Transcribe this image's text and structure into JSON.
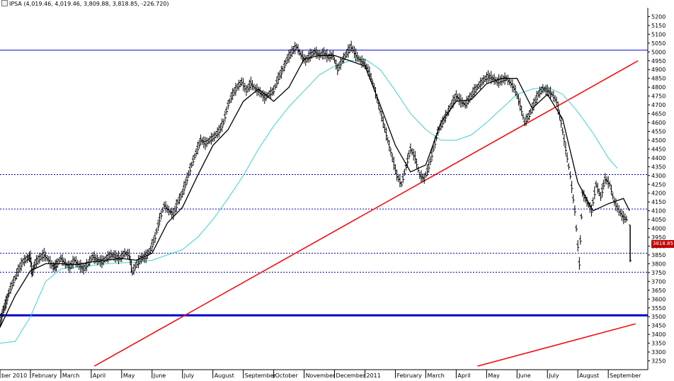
{
  "header": {
    "symbol": "IPSA",
    "ohlc_text": "(4,019.46, 4,019.46, 3,809.88, 3,818.85, -226.720)"
  },
  "last_price_label": "3818.85",
  "colors": {
    "background": "#ffffff",
    "price_bars": "#000000",
    "fast_ma": "#000000",
    "slow_ma": "#40d0d0",
    "trendline": "#ff0000",
    "horizontal_levels": "#0000cc",
    "last_badge": "#c00000"
  },
  "chart_data": {
    "type": "line",
    "title": "IPSA",
    "xlabel": "",
    "ylabel": "",
    "ylim": [
      3200,
      5250
    ],
    "grid": false,
    "y_ticks": [
      3250,
      3300,
      3350,
      3400,
      3450,
      3500,
      3550,
      3600,
      3650,
      3700,
      3750,
      3800,
      3850,
      3900,
      3950,
      4000,
      4050,
      4100,
      4150,
      4200,
      4250,
      4300,
      4350,
      4400,
      4450,
      4500,
      4550,
      4600,
      4650,
      4700,
      4750,
      4800,
      4850,
      4900,
      4950,
      5000,
      5050,
      5100,
      5150,
      5200
    ],
    "x_labels": [
      {
        "label": "ber 2010",
        "x": 0.0
      },
      {
        "label": "February",
        "x": 1.0
      },
      {
        "label": "March",
        "x": 2.0
      },
      {
        "label": "April",
        "x": 3.0
      },
      {
        "label": "May",
        "x": 4.0
      },
      {
        "label": "June",
        "x": 5.0
      },
      {
        "label": "July",
        "x": 6.0
      },
      {
        "label": "August",
        "x": 7.0
      },
      {
        "label": "September",
        "x": 8.0
      },
      {
        "label": "October",
        "x": 9.0
      },
      {
        "label": "November",
        "x": 10.0
      },
      {
        "label": "December",
        "x": 11.0
      },
      {
        "label": "2011",
        "x": 12.0
      },
      {
        "label": "February",
        "x": 13.0
      },
      {
        "label": "March",
        "x": 14.0
      },
      {
        "label": "April",
        "x": 15.0
      },
      {
        "label": "May",
        "x": 16.0
      },
      {
        "label": "June",
        "x": 17.0
      },
      {
        "label": "July",
        "x": 18.0
      },
      {
        "label": "August",
        "x": 19.0
      },
      {
        "label": "September",
        "x": 20.0
      }
    ],
    "x_range": [
      0,
      21.3
    ],
    "price_path": [
      [
        0.0,
        3460
      ],
      [
        0.1,
        3530
      ],
      [
        0.2,
        3580
      ],
      [
        0.3,
        3640
      ],
      [
        0.45,
        3700
      ],
      [
        0.6,
        3760
      ],
      [
        0.75,
        3810
      ],
      [
        0.9,
        3830
      ],
      [
        1.0,
        3840
      ],
      [
        1.05,
        3740
      ],
      [
        1.15,
        3800
      ],
      [
        1.3,
        3830
      ],
      [
        1.45,
        3850
      ],
      [
        1.6,
        3820
      ],
      [
        1.75,
        3780
      ],
      [
        1.85,
        3790
      ],
      [
        2.0,
        3830
      ],
      [
        2.15,
        3800
      ],
      [
        2.3,
        3780
      ],
      [
        2.45,
        3820
      ],
      [
        2.6,
        3790
      ],
      [
        2.75,
        3770
      ],
      [
        2.9,
        3800
      ],
      [
        3.05,
        3840
      ],
      [
        3.2,
        3820
      ],
      [
        3.35,
        3810
      ],
      [
        3.5,
        3830
      ],
      [
        3.65,
        3850
      ],
      [
        3.8,
        3840
      ],
      [
        3.95,
        3830
      ],
      [
        4.1,
        3860
      ],
      [
        4.25,
        3850
      ],
      [
        4.35,
        3750
      ],
      [
        4.5,
        3800
      ],
      [
        4.65,
        3830
      ],
      [
        4.8,
        3840
      ],
      [
        4.95,
        3880
      ],
      [
        5.1,
        3950
      ],
      [
        5.25,
        4050
      ],
      [
        5.4,
        4130
      ],
      [
        5.55,
        4100
      ],
      [
        5.7,
        4080
      ],
      [
        5.85,
        4150
      ],
      [
        6.0,
        4200
      ],
      [
        6.15,
        4280
      ],
      [
        6.3,
        4360
      ],
      [
        6.45,
        4430
      ],
      [
        6.6,
        4500
      ],
      [
        6.75,
        4480
      ],
      [
        6.9,
        4500
      ],
      [
        7.05,
        4520
      ],
      [
        7.2,
        4550
      ],
      [
        7.35,
        4600
      ],
      [
        7.5,
        4700
      ],
      [
        7.65,
        4760
      ],
      [
        7.8,
        4800
      ],
      [
        7.95,
        4830
      ],
      [
        8.1,
        4780
      ],
      [
        8.25,
        4820
      ],
      [
        8.4,
        4790
      ],
      [
        8.55,
        4770
      ],
      [
        8.7,
        4740
      ],
      [
        8.85,
        4760
      ],
      [
        9.0,
        4780
      ],
      [
        9.15,
        4850
      ],
      [
        9.3,
        4900
      ],
      [
        9.45,
        4960
      ],
      [
        9.6,
        5000
      ],
      [
        9.75,
        5030
      ],
      [
        9.9,
        4980
      ],
      [
        10.05,
        4950
      ],
      [
        10.2,
        4980
      ],
      [
        10.35,
        5000
      ],
      [
        10.5,
        4980
      ],
      [
        10.65,
        4990
      ],
      [
        10.8,
        4970
      ],
      [
        10.95,
        4980
      ],
      [
        11.1,
        4900
      ],
      [
        11.25,
        4950
      ],
      [
        11.4,
        4990
      ],
      [
        11.55,
        5030
      ],
      [
        11.7,
        4980
      ],
      [
        11.85,
        4950
      ],
      [
        12.0,
        4930
      ],
      [
        12.15,
        4880
      ],
      [
        12.3,
        4800
      ],
      [
        12.45,
        4700
      ],
      [
        12.6,
        4600
      ],
      [
        12.75,
        4500
      ],
      [
        12.9,
        4400
      ],
      [
        13.05,
        4300
      ],
      [
        13.2,
        4250
      ],
      [
        13.35,
        4350
      ],
      [
        13.5,
        4450
      ],
      [
        13.65,
        4400
      ],
      [
        13.8,
        4300
      ],
      [
        13.95,
        4280
      ],
      [
        14.1,
        4350
      ],
      [
        14.25,
        4450
      ],
      [
        14.4,
        4550
      ],
      [
        14.55,
        4600
      ],
      [
        14.7,
        4650
      ],
      [
        14.85,
        4700
      ],
      [
        15.0,
        4750
      ],
      [
        15.15,
        4720
      ],
      [
        15.3,
        4700
      ],
      [
        15.45,
        4740
      ],
      [
        15.6,
        4780
      ],
      [
        15.75,
        4810
      ],
      [
        15.9,
        4840
      ],
      [
        16.05,
        4860
      ],
      [
        16.2,
        4850
      ],
      [
        16.35,
        4830
      ],
      [
        16.5,
        4840
      ],
      [
        16.65,
        4850
      ],
      [
        16.8,
        4820
      ],
      [
        16.95,
        4780
      ],
      [
        17.1,
        4700
      ],
      [
        17.25,
        4600
      ],
      [
        17.4,
        4640
      ],
      [
        17.55,
        4700
      ],
      [
        17.7,
        4760
      ],
      [
        17.85,
        4790
      ],
      [
        18.0,
        4780
      ],
      [
        18.15,
        4760
      ],
      [
        18.3,
        4720
      ],
      [
        18.45,
        4600
      ],
      [
        18.6,
        4450
      ],
      [
        18.75,
        4300
      ],
      [
        18.9,
        4100
      ],
      [
        19.05,
        3800
      ],
      [
        19.15,
        4200
      ],
      [
        19.3,
        4150
      ],
      [
        19.45,
        4100
      ],
      [
        19.6,
        4250
      ],
      [
        19.75,
        4180
      ],
      [
        19.9,
        4280
      ],
      [
        20.05,
        4250
      ],
      [
        20.2,
        4150
      ],
      [
        20.35,
        4100
      ],
      [
        20.5,
        4060
      ],
      [
        20.65,
        4050
      ]
    ],
    "last_bar": {
      "x": 20.72,
      "open": 4019.46,
      "high": 4019.46,
      "low": 3809.88,
      "close": 3818.85
    },
    "fast_ma": [
      [
        0.0,
        3440
      ],
      [
        0.5,
        3620
      ],
      [
        1.0,
        3760
      ],
      [
        1.5,
        3800
      ],
      [
        2.0,
        3800
      ],
      [
        2.5,
        3795
      ],
      [
        3.0,
        3810
      ],
      [
        3.5,
        3820
      ],
      [
        4.0,
        3830
      ],
      [
        4.5,
        3820
      ],
      [
        5.0,
        3860
      ],
      [
        5.5,
        4030
      ],
      [
        6.0,
        4120
      ],
      [
        6.5,
        4300
      ],
      [
        7.0,
        4470
      ],
      [
        7.5,
        4560
      ],
      [
        8.0,
        4720
      ],
      [
        8.5,
        4790
      ],
      [
        9.0,
        4720
      ],
      [
        9.5,
        4800
      ],
      [
        10.0,
        4960
      ],
      [
        10.5,
        4980
      ],
      [
        11.0,
        4980
      ],
      [
        11.5,
        4950
      ],
      [
        12.0,
        4920
      ],
      [
        12.5,
        4700
      ],
      [
        13.0,
        4470
      ],
      [
        13.5,
        4320
      ],
      [
        14.0,
        4360
      ],
      [
        14.5,
        4600
      ],
      [
        15.0,
        4720
      ],
      [
        15.5,
        4730
      ],
      [
        16.0,
        4820
      ],
      [
        16.5,
        4850
      ],
      [
        17.0,
        4850
      ],
      [
        17.5,
        4680
      ],
      [
        18.0,
        4760
      ],
      [
        18.5,
        4620
      ],
      [
        19.0,
        4260
      ],
      [
        19.5,
        4100
      ],
      [
        20.0,
        4140
      ],
      [
        20.5,
        4170
      ],
      [
        20.7,
        4100
      ]
    ],
    "slow_ma": [
      [
        0.0,
        3350
      ],
      [
        0.5,
        3360
      ],
      [
        1.0,
        3500
      ],
      [
        1.5,
        3700
      ],
      [
        2.0,
        3770
      ],
      [
        2.5,
        3780
      ],
      [
        3.0,
        3790
      ],
      [
        3.5,
        3800
      ],
      [
        4.0,
        3805
      ],
      [
        4.5,
        3810
      ],
      [
        5.0,
        3820
      ],
      [
        5.5,
        3850
      ],
      [
        6.0,
        3880
      ],
      [
        6.5,
        3950
      ],
      [
        7.0,
        4050
      ],
      [
        7.5,
        4170
      ],
      [
        8.0,
        4300
      ],
      [
        8.5,
        4450
      ],
      [
        9.0,
        4580
      ],
      [
        9.5,
        4690
      ],
      [
        10.0,
        4780
      ],
      [
        10.5,
        4870
      ],
      [
        11.0,
        4920
      ],
      [
        11.5,
        4950
      ],
      [
        12.0,
        4960
      ],
      [
        12.5,
        4900
      ],
      [
        13.0,
        4780
      ],
      [
        13.5,
        4650
      ],
      [
        14.0,
        4560
      ],
      [
        14.5,
        4500
      ],
      [
        15.0,
        4500
      ],
      [
        15.5,
        4530
      ],
      [
        16.0,
        4600
      ],
      [
        16.5,
        4680
      ],
      [
        17.0,
        4760
      ],
      [
        17.5,
        4790
      ],
      [
        18.0,
        4800
      ],
      [
        18.5,
        4760
      ],
      [
        19.0,
        4660
      ],
      [
        19.5,
        4540
      ],
      [
        20.0,
        4400
      ],
      [
        20.3,
        4340
      ]
    ],
    "horizontal_levels": [
      {
        "y": 5010,
        "style": "solid"
      },
      {
        "y": 4305,
        "style": "dotted"
      },
      {
        "y": 4110,
        "style": "dotted"
      },
      {
        "y": 3860,
        "style": "dotted"
      },
      {
        "y": 3752,
        "style": "dotted"
      },
      {
        "y": 3508,
        "style": "solid-thick"
      }
    ],
    "trendlines": [
      {
        "x1": 3.1,
        "y1": 3220,
        "x2": 20.98,
        "y2": 4950
      },
      {
        "x1": 15.7,
        "y1": 3220,
        "x2": 20.9,
        "y2": 3460
      }
    ]
  }
}
